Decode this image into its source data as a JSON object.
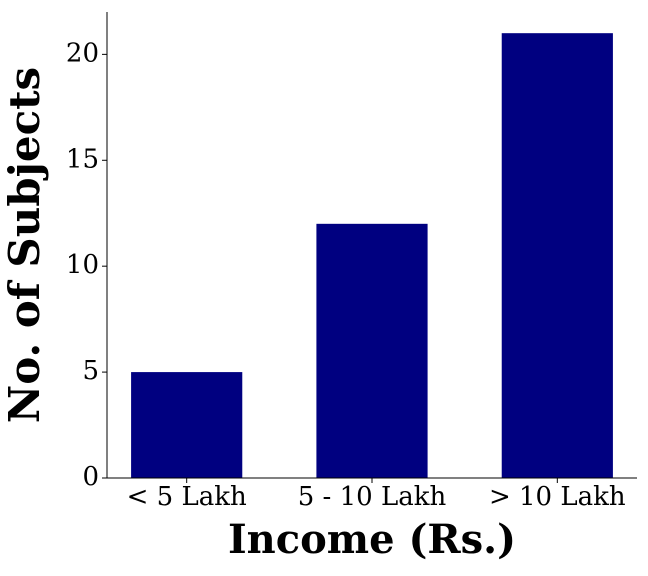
{
  "chart_data": {
    "type": "bar",
    "x_label": "Income (Rs.)",
    "y_label": "No. of Subjects",
    "categories": [
      "< 5 Lakh",
      "5 - 10 Lakh",
      "> 10 Lakh"
    ],
    "values": [
      5,
      12,
      21
    ],
    "color": "#000080",
    "ylim": [
      0,
      22
    ],
    "yticks": [
      0,
      5,
      10,
      15,
      20
    ]
  }
}
